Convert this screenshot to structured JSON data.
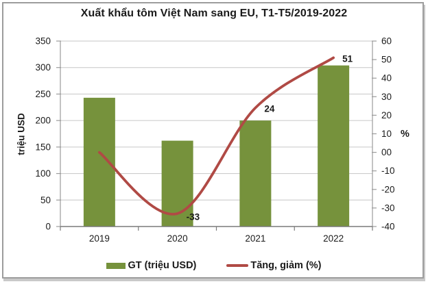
{
  "chart_data": {
    "type": "combo-bar-line",
    "title": "Xuất khẩu tôm Việt Nam sang EU, T1-T5/2019-2022",
    "categories": [
      "2019",
      "2020",
      "2021",
      "2022"
    ],
    "series": [
      {
        "name": "GT (triệu USD)",
        "type": "bar",
        "axis": "left",
        "color": "#76923C",
        "values": [
          243,
          162,
          200,
          304
        ]
      },
      {
        "name": "Tăng, giảm (%)",
        "type": "line",
        "axis": "right",
        "color": "#B04A45",
        "values": [
          0,
          -33,
          24,
          51
        ],
        "point_labels": [
          "",
          "-33",
          "24",
          "51"
        ]
      }
    ],
    "left_axis": {
      "title": "triệu USD",
      "min": 0,
      "max": 350,
      "tick_step": 50,
      "ticks": [
        {
          "v": 350,
          "label": "350"
        },
        {
          "v": 300,
          "label": "300"
        },
        {
          "v": 250,
          "label": "250"
        },
        {
          "v": 200,
          "label": "200"
        },
        {
          "v": 150,
          "label": "150"
        },
        {
          "v": 100,
          "label": "100"
        },
        {
          "v": 50,
          "label": "50"
        },
        {
          "v": 0,
          "label": "0"
        }
      ]
    },
    "right_axis": {
      "title": "%",
      "min": -40,
      "max": 60,
      "tick_step": 10,
      "ticks": [
        {
          "v": 60,
          "label": "60"
        },
        {
          "v": 50,
          "label": "50"
        },
        {
          "v": 40,
          "label": "40"
        },
        {
          "v": 30,
          "label": "30"
        },
        {
          "v": 20,
          "label": "20"
        },
        {
          "v": 10,
          "label": "10"
        },
        {
          "v": 0,
          "label": "00"
        },
        {
          "v": -10,
          "label": "-10"
        },
        {
          "v": -20,
          "label": "-20"
        },
        {
          "v": -30,
          "label": "-30"
        },
        {
          "v": -40,
          "label": "-40"
        }
      ]
    },
    "legend_position": "bottom",
    "grid": "horizontal",
    "styles": {
      "grid_color": "#C6C6C6",
      "axis_color": "#9B9B9B",
      "axis_bottom_color": "#7A7A7A",
      "text_color": "#1A1A1A",
      "background": "#FFFFFF",
      "frame_border": "#9C9C9C"
    }
  }
}
